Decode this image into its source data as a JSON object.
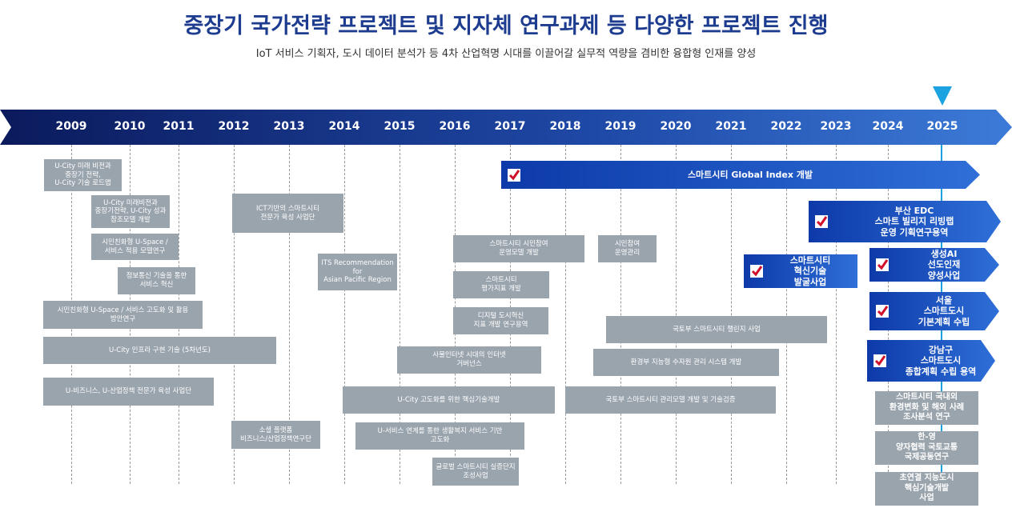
{
  "header": {
    "title": "중장기 국가전략 프로젝트 및 지자체 연구과제 등 다양한 프로젝트 진행",
    "subtitle": "IoT 서비스 기획자, 도시 데이터 분석가 등 4차 산업혁명 시대를 이끌어갈 실무적 역량을 겸비한 융합형 인재를 양성"
  },
  "timeline": {
    "years": [
      "2009",
      "2010",
      "2011",
      "2012",
      "2013",
      "2014",
      "2015",
      "2016",
      "2017",
      "2018",
      "2019",
      "2020",
      "2021",
      "2022",
      "2023",
      "2024",
      "2025"
    ]
  },
  "projects": [
    "U-City 미래 비전과\n중장기 전략,\nU-City 기술 로드맵",
    "U-City 미래비전과\n중장기전략, U-City 성과\n참조모델 개발",
    "시민친화형 U-Space /\n서비스 적용 모델연구",
    "정보통신 기술을 통한\n서비스 혁신",
    "시민친화형 U-Space / 서비스 고도화 및 활용\n방안연구",
    "U-City 인프라 구현 기술 (5차년도)",
    "U-비즈니스, U-산업정책 전문가 육성 사업단",
    "ICT기반의 스마트시티\n전문가 육성 사업단",
    "ITS Recommendation for\nAsian Pacific Region",
    "소셜 플랫폼\n비즈니스/산업정책연구단",
    "스마트시티 시민참여\n운영모델 개발",
    "스마트시티\n평가지표 개발",
    "디지털 도시혁신\n지표 개발 연구용역",
    "사물인터넷 시대의 인터넷\n거버넌스",
    "U-City 고도화를 위한 핵심기술개발",
    "U-서비스 연계를 통한 생활복지 서비스 기반\n고도화",
    "글로벌 스마트시티 실증단지\n조성사업",
    "시민참여\n운영관리",
    "국토부 스마트시티 챌린지 사업",
    "환경부 지능형 수자원 관리 시스템 개발",
    "국토부 스마트시티 관리모델 개발 및 기술검증",
    "스마트시티 국내외\n환경변화 및 해외 사례\n조사분석 연구",
    "한-영\n양자협력 국토교통\n국제공동연구",
    "초연결 지능도시\n핵심기술개발\n사업"
  ],
  "highlights": [
    "스마트시티 Global Index 개발",
    "부산 EDC\n스마트 빌리지 리빙랩\n운영 기획연구용역",
    "스마트시티\n혁신기술\n발굴사업",
    "생성AI\n선도인재\n양성사업",
    "서울\n스마트도시\n기본계획 수립",
    "강남구\n스마트도시\n종합계획 수립 용역"
  ]
}
